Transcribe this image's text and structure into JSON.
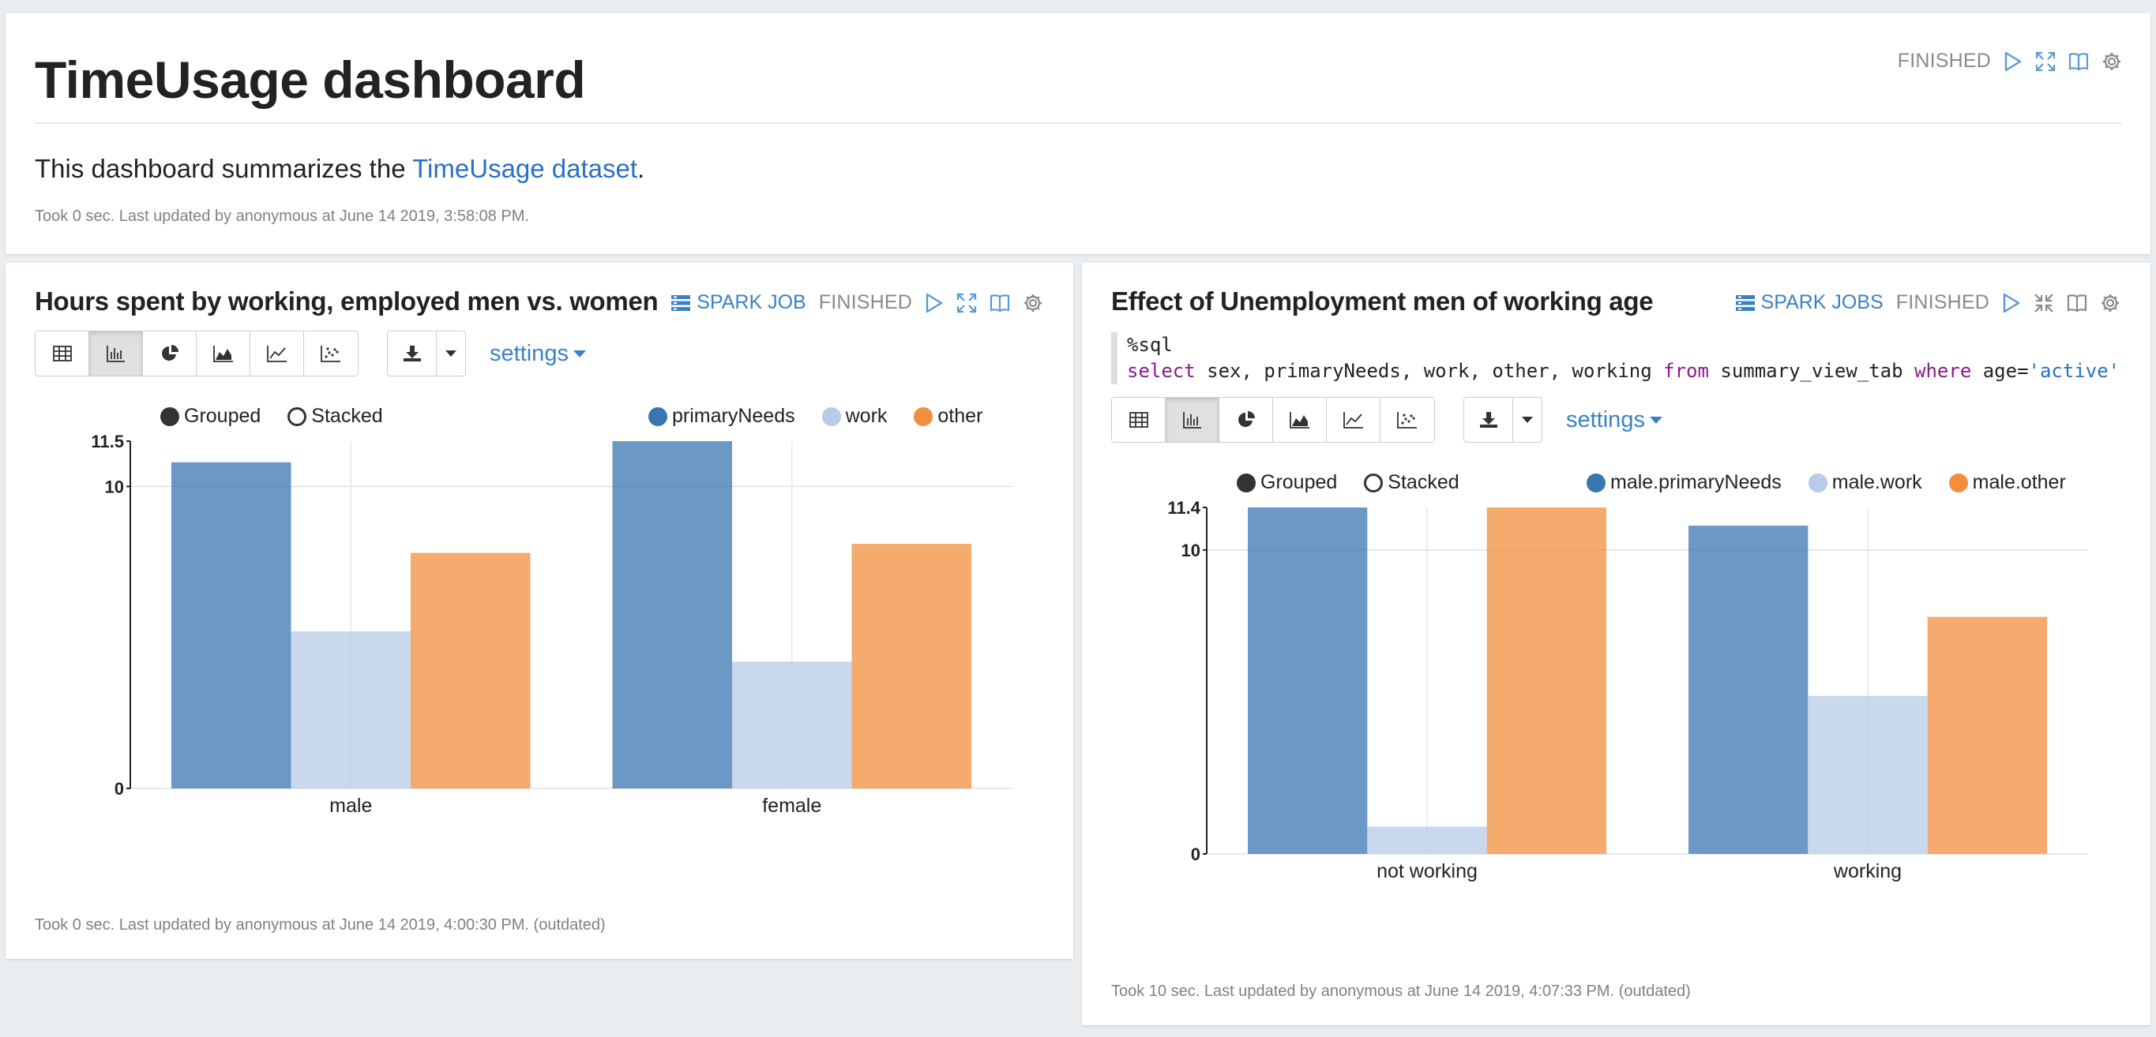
{
  "dashboard": {
    "title": "TimeUsage dashboard",
    "status": "FINISHED",
    "description_prefix": "This dashboard summarizes the ",
    "description_link": "TimeUsage dataset",
    "description_suffix": ".",
    "footer": "Took 0 sec. Last updated by anonymous at June 14 2019, 3:58:08 PM."
  },
  "left_panel": {
    "title": "Hours spent by working, employed men vs. women",
    "spark_label": "SPARK JOB",
    "status": "FINISHED",
    "settings_label": "settings",
    "grouped_label": "Grouped",
    "stacked_label": "Stacked",
    "footer": "Took 0 sec. Last updated by anonymous at June 14 2019, 4:00:30 PM. (outdated)"
  },
  "right_panel": {
    "title": "Effect of Unemployment men of working age",
    "spark_label": "SPARK JOBS",
    "status": "FINISHED",
    "code_line1": "%sql",
    "code_select": "select",
    "code_cols": " sex, primaryNeeds, work, other, working ",
    "code_from": "from",
    "code_table": " summary_view_tab ",
    "code_where": "where",
    "code_cond": " age=",
    "code_value": "'active'",
    "settings_label": "settings",
    "grouped_label": "Grouped",
    "stacked_label": "Stacked",
    "footer": "Took 10 sec. Last updated by anonymous at June 14 2019, 4:07:33 PM. (outdated)"
  },
  "colors": {
    "primaryNeeds": "#3a75b0",
    "work": "#b8cbe8",
    "other": "#f28e3d"
  },
  "chart_data": [
    {
      "type": "bar",
      "mode": "grouped",
      "categories": [
        "male",
        "female"
      ],
      "series": [
        {
          "name": "primaryNeeds",
          "values": [
            10.8,
            11.5
          ]
        },
        {
          "name": "work",
          "values": [
            5.2,
            4.2
          ]
        },
        {
          "name": "other",
          "values": [
            7.8,
            8.1
          ]
        }
      ],
      "ylim": [
        0,
        11.5
      ],
      "y_ticks": [
        "0",
        "10",
        "11.5"
      ],
      "grid": true,
      "legend_position": "top-right"
    },
    {
      "type": "bar",
      "mode": "grouped",
      "categories": [
        "not working",
        "working"
      ],
      "series": [
        {
          "name": "male.primaryNeeds",
          "values": [
            11.4,
            10.8
          ]
        },
        {
          "name": "male.work",
          "values": [
            0.9,
            5.2
          ]
        },
        {
          "name": "male.other",
          "values": [
            11.4,
            7.8
          ]
        }
      ],
      "ylim": [
        0,
        11.4
      ],
      "y_ticks": [
        "0",
        "10",
        "11.4"
      ],
      "grid": true,
      "legend_position": "top-right"
    }
  ]
}
